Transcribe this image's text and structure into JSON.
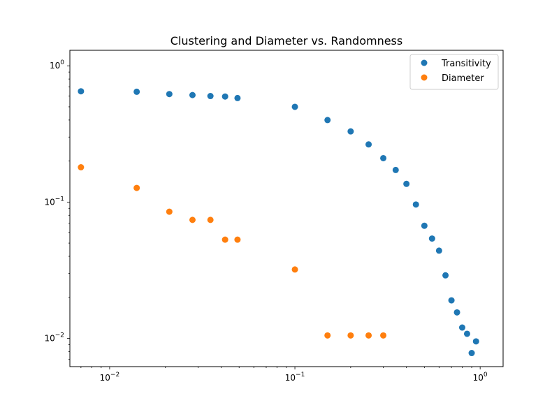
{
  "chart_data": {
    "type": "scatter",
    "title": "Clustering and Diameter vs. Randomness",
    "xlabel": "",
    "ylabel": "",
    "xscale": "log",
    "yscale": "log",
    "xlim": [
      0.0061,
      1.33
    ],
    "ylim": [
      0.0062,
      1.3
    ],
    "grid": false,
    "legend": {
      "location": "top-right"
    },
    "x_ticks": [
      {
        "value": 0.01,
        "base": "10",
        "exp": "−2"
      },
      {
        "value": 0.1,
        "base": "10",
        "exp": "−1"
      },
      {
        "value": 1,
        "base": "10",
        "exp": "0"
      }
    ],
    "y_ticks": [
      {
        "value": 0.01,
        "base": "10",
        "exp": "−2"
      },
      {
        "value": 0.1,
        "base": "10",
        "exp": "−1"
      },
      {
        "value": 1,
        "base": "10",
        "exp": "0"
      }
    ],
    "series": [
      {
        "name": "Transitivity",
        "color": "#1f77b4",
        "x": [
          0.007,
          0.014,
          0.021,
          0.028,
          0.035,
          0.042,
          0.049,
          0.1,
          0.15,
          0.2,
          0.25,
          0.3,
          0.35,
          0.4,
          0.45,
          0.5,
          0.55,
          0.6,
          0.65,
          0.7,
          0.75,
          0.8,
          0.85,
          0.9,
          0.95
        ],
        "y": [
          0.65,
          0.645,
          0.62,
          0.61,
          0.6,
          0.595,
          0.58,
          0.5,
          0.4,
          0.33,
          0.265,
          0.21,
          0.172,
          0.136,
          0.096,
          0.067,
          0.054,
          0.044,
          0.029,
          0.019,
          0.0155,
          0.012,
          0.0108,
          0.0078,
          0.0095
        ]
      },
      {
        "name": "Diameter",
        "color": "#ff7f0e",
        "x": [
          0.007,
          0.014,
          0.021,
          0.028,
          0.035,
          0.042,
          0.049,
          0.1,
          0.15,
          0.2,
          0.25,
          0.3
        ],
        "y": [
          0.18,
          0.127,
          0.085,
          0.074,
          0.074,
          0.053,
          0.053,
          0.032,
          0.0105,
          0.0105,
          0.0105,
          0.0105
        ]
      }
    ]
  }
}
